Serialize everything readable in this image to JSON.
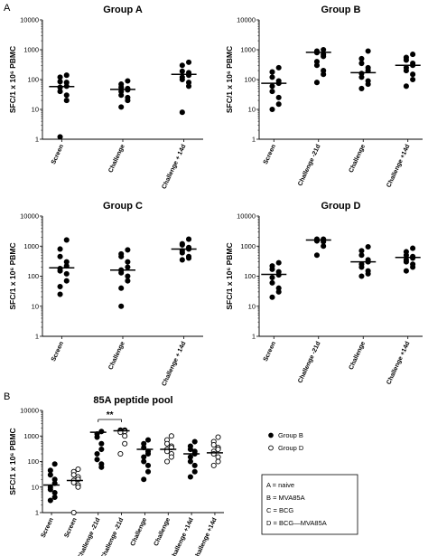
{
  "panel_labels": {
    "a": "A",
    "b": "B"
  },
  "key_box": {
    "lines": [
      "A = naive",
      "B = MVA85A",
      "C = BCG",
      "D = BCG—MVA85A"
    ]
  },
  "chart_data": [
    {
      "id": "groupA",
      "type": "scatter",
      "title": "Group A",
      "ylabel": "SFC/1 x 10⁶ PBMC",
      "yscale": "log",
      "ylim": [
        1,
        10000
      ],
      "yticks": [
        "1",
        "10",
        "100",
        "1000",
        "10000"
      ],
      "categories": [
        "Screen",
        "Challenge",
        "Challenge + 14d"
      ],
      "series": [
        {
          "values": [
            [
              140,
              120,
              85,
              80,
              60,
              55,
              40,
              30,
              20,
              1.2
            ],
            [
              90,
              70,
              55,
              50,
              45,
              40,
              30,
              25,
              20,
              12
            ],
            [
              380,
              300,
              190,
              170,
              140,
              120,
              100,
              80,
              60,
              8
            ]
          ],
          "medians": [
            58,
            47,
            150
          ],
          "marker": "filled"
        }
      ]
    },
    {
      "id": "groupB",
      "type": "scatter",
      "title": "Group B",
      "ylabel": "SFC/1 x 10⁶ PBMC",
      "yscale": "log",
      "ylim": [
        1,
        10000
      ],
      "yticks": [
        "1",
        "10",
        "100",
        "1000",
        "10000"
      ],
      "categories": [
        "Screen",
        "Challenge -21d",
        "Challenge",
        "Challenge +14d"
      ],
      "series": [
        {
          "values": [
            [
              250,
              180,
              120,
              90,
              75,
              60,
              40,
              25,
              15,
              10
            ],
            [
              1000,
              900,
              800,
              700,
              600,
              400,
              300,
              200,
              150,
              80
            ],
            [
              900,
              500,
              350,
              250,
              200,
              160,
              120,
              90,
              70,
              50
            ],
            [
              700,
              550,
              450,
              350,
              300,
              250,
              200,
              150,
              100,
              60
            ]
          ],
          "medians": [
            75,
            820,
            170,
            300
          ],
          "marker": "filled"
        }
      ]
    },
    {
      "id": "groupC",
      "type": "scatter",
      "title": "Group C",
      "ylabel": "SFC/1 x 10⁶ PBMC",
      "yscale": "log",
      "ylim": [
        1,
        10000
      ],
      "yticks": [
        "1",
        "10",
        "100",
        "1000",
        "10000"
      ],
      "categories": [
        "Screen",
        "Challenge",
        "Challenge + 14d"
      ],
      "series": [
        {
          "values": [
            [
              1600,
              800,
              450,
              300,
              220,
              180,
              150,
              120,
              70,
              45,
              25
            ],
            [
              750,
              550,
              450,
              300,
              200,
              160,
              130,
              100,
              70,
              40,
              10
            ],
            [
              1700,
              1200,
              1100,
              900,
              800,
              700,
              600,
              450,
              400,
              350
            ]
          ],
          "medians": [
            190,
            160,
            800
          ],
          "marker": "filled"
        }
      ]
    },
    {
      "id": "groupD",
      "type": "scatter",
      "title": "Group D",
      "ylabel": "SFC/1 x 10⁶ PBMC",
      "yscale": "log",
      "ylim": [
        1,
        10000
      ],
      "yticks": [
        "1",
        "10",
        "100",
        "1000",
        "10000"
      ],
      "categories": [
        "Screen",
        "Challenge -21d",
        "Challenge",
        "Challenge +14d"
      ],
      "series": [
        {
          "values": [
            [
              280,
              220,
              170,
              140,
              110,
              90,
              60,
              40,
              30,
              20
            ],
            [
              1700,
              1700,
              1600,
              1600,
              1600,
              1500,
              1500,
              1400,
              1000,
              500
            ],
            [
              950,
              700,
              500,
              350,
              300,
              250,
              200,
              150,
              120,
              100
            ],
            [
              850,
              650,
              500,
              450,
              400,
              350,
              300,
              250,
              200,
              150
            ]
          ],
          "medians": [
            115,
            1600,
            300,
            420
          ],
          "marker": "filled"
        }
      ]
    },
    {
      "id": "pool",
      "type": "scatter",
      "title": "85A peptide pool",
      "ylabel": "SFC/1 x 10⁶ PBMC",
      "yscale": "log",
      "ylim": [
        1,
        10000
      ],
      "yticks": [
        "1",
        "10",
        "100",
        "1000",
        "10000"
      ],
      "categories": [
        "Screen",
        "Screen",
        "Challenge -21d",
        "Challenge -21d",
        "Challenge",
        "Challenge",
        "Challenge +14d",
        "Challenge +14d"
      ],
      "legend": [
        {
          "name": "Group B",
          "marker": "filled"
        },
        {
          "name": "Group D",
          "marker": "open"
        }
      ],
      "series": [
        {
          "name": "Group B",
          "marker": "filled",
          "positions": [
            0,
            2,
            4,
            6
          ],
          "values": [
            [
              80,
              45,
              30,
              20,
              14,
              10,
              8,
              6,
              4,
              3
            ],
            [
              1500,
              1200,
              900,
              500,
              300,
              200,
              120,
              80,
              60
            ],
            [
              700,
              500,
              350,
              250,
              200,
              150,
              100,
              70,
              40,
              20
            ],
            [
              600,
              400,
              300,
              250,
              200,
              150,
              100,
              70,
              40,
              25
            ]
          ],
          "medians": [
            12,
            1400,
            300,
            200
          ]
        },
        {
          "name": "Group D",
          "marker": "open",
          "positions": [
            1,
            3,
            5,
            7
          ],
          "values": [
            [
              50,
              40,
              30,
              25,
              20,
              18,
              15,
              12,
              10,
              1
            ],
            [
              1700,
              1700,
              1600,
              1600,
              1500,
              1500,
              1400,
              1000,
              500,
              200
            ],
            [
              1000,
              700,
              500,
              400,
              350,
              300,
              250,
              200,
              150,
              100
            ],
            [
              900,
              600,
              450,
              350,
              300,
              250,
              200,
              150,
              100,
              70
            ]
          ],
          "medians": [
            18,
            1600,
            300,
            220
          ]
        }
      ],
      "annotations": [
        {
          "text": "**",
          "between": [
            2,
            3
          ]
        }
      ]
    }
  ]
}
